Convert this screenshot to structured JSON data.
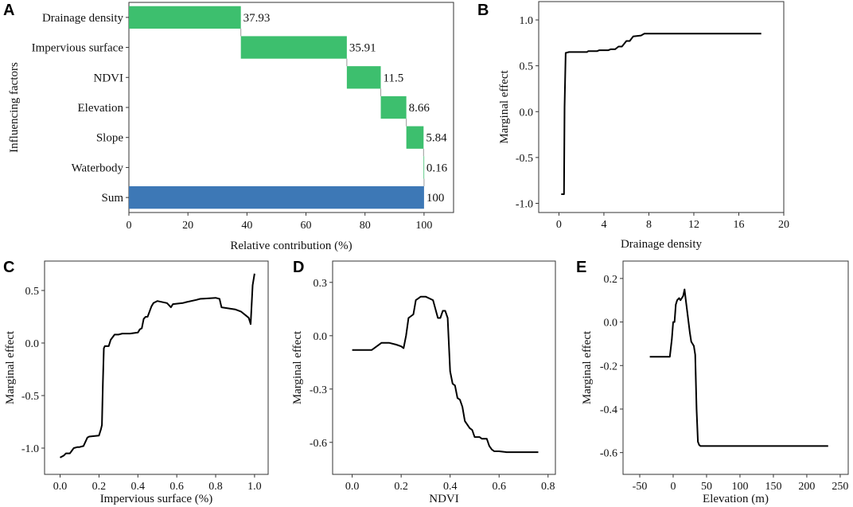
{
  "chart_data": [
    {
      "panel": "A",
      "type": "bar",
      "subtype": "waterfall-horizontal",
      "categories": [
        "Drainage density",
        "Impervious surface",
        "NDVI",
        "Elevation",
        "Slope",
        "Waterbody",
        "Sum"
      ],
      "values": [
        37.93,
        35.91,
        11.5,
        8.66,
        5.84,
        0.16,
        100
      ],
      "value_labels": [
        "37.93",
        "35.91",
        "11.5",
        "8.66",
        "5.84",
        "0.16",
        "100"
      ],
      "colors": {
        "increment": "#3dbf6e",
        "total": "#3d78b6",
        "connector": "#9a9a9a"
      },
      "xlabel": "Relative contribution (%)",
      "ylabel": "Influencing factors",
      "xlim": [
        0,
        110
      ],
      "xticks": [
        0,
        20,
        40,
        60,
        80,
        100
      ],
      "xtick_labels": [
        "0",
        "20",
        "40",
        "60",
        "80",
        "100"
      ]
    },
    {
      "panel": "B",
      "type": "line",
      "xlabel": "Drainage density",
      "ylabel": "Marginal effect",
      "xlim": [
        -1.8,
        20
      ],
      "ylim": [
        -1.1,
        1.2
      ],
      "xticks": [
        0,
        4,
        8,
        12,
        16,
        20
      ],
      "xtick_labels": [
        "0",
        "4",
        "8",
        "12",
        "16",
        "20"
      ],
      "yticks": [
        -1.0,
        -0.5,
        0.0,
        0.5,
        1.0
      ],
      "ytick_labels": [
        "-1.0",
        "-0.5",
        "0.0",
        "0.5",
        "1.0"
      ],
      "series": [
        {
          "name": "Drainage density",
          "x": [
            0.2,
            0.45,
            0.5,
            0.6,
            0.9,
            1.5,
            2.5,
            2.6,
            3.4,
            3.6,
            4.4,
            4.6,
            5.0,
            5.3,
            5.6,
            6.0,
            6.3,
            6.6,
            7.3,
            7.6,
            18.0
          ],
          "y": [
            -0.9,
            -0.9,
            0.05,
            0.64,
            0.65,
            0.65,
            0.65,
            0.66,
            0.66,
            0.67,
            0.67,
            0.68,
            0.68,
            0.71,
            0.71,
            0.77,
            0.77,
            0.82,
            0.83,
            0.85,
            0.85
          ]
        }
      ]
    },
    {
      "panel": "C",
      "type": "line",
      "xlabel": "Impervious surface (%)",
      "ylabel": "Marginal effect",
      "xlim": [
        -0.08,
        1.07
      ],
      "ylim": [
        -1.25,
        0.78
      ],
      "xticks": [
        0,
        0.2,
        0.4,
        0.6,
        0.8,
        1.0
      ],
      "xtick_labels": [
        "0.0",
        "0.2",
        "0.4",
        "0.6",
        "0.8",
        "1.0"
      ],
      "yticks": [
        -1.0,
        -0.5,
        0.0,
        0.5
      ],
      "ytick_labels": [
        "-1.0",
        "-0.5",
        "0.0",
        "0.5"
      ],
      "series": [
        {
          "name": "Impervious surface",
          "x": [
            0.0,
            0.02,
            0.03,
            0.05,
            0.07,
            0.09,
            0.1,
            0.12,
            0.14,
            0.15,
            0.2,
            0.21,
            0.215,
            0.22,
            0.225,
            0.23,
            0.25,
            0.26,
            0.28,
            0.3,
            0.32,
            0.36,
            0.4,
            0.41,
            0.42,
            0.43,
            0.44,
            0.45,
            0.47,
            0.48,
            0.5,
            0.55,
            0.57,
            0.58,
            0.63,
            0.65,
            0.7,
            0.72,
            0.8,
            0.82,
            0.83,
            0.9,
            0.93,
            0.95,
            0.97,
            0.98,
            0.99,
            1.0
          ],
          "y": [
            -1.09,
            -1.07,
            -1.05,
            -1.05,
            -1.0,
            -0.99,
            -0.99,
            -0.98,
            -0.9,
            -0.89,
            -0.88,
            -0.82,
            -0.78,
            -0.38,
            -0.05,
            -0.03,
            -0.03,
            0.03,
            0.08,
            0.08,
            0.09,
            0.09,
            0.1,
            0.13,
            0.14,
            0.23,
            0.25,
            0.25,
            0.35,
            0.38,
            0.4,
            0.38,
            0.34,
            0.37,
            0.38,
            0.39,
            0.41,
            0.42,
            0.43,
            0.42,
            0.34,
            0.32,
            0.3,
            0.27,
            0.24,
            0.18,
            0.55,
            0.66
          ]
        }
      ]
    },
    {
      "panel": "D",
      "type": "line",
      "xlabel": "NDVI",
      "ylabel": "Marginal effect",
      "xlim": [
        -0.08,
        0.83
      ],
      "ylim": [
        -0.78,
        0.42
      ],
      "xticks": [
        0,
        0.2,
        0.4,
        0.6,
        0.8
      ],
      "xtick_labels": [
        "0.0",
        "0.2",
        "0.4",
        "0.6",
        "0.8"
      ],
      "yticks": [
        -0.6,
        -0.3,
        0.0,
        0.3
      ],
      "ytick_labels": [
        "-0.6",
        "-0.3",
        "0.0",
        "0.3"
      ],
      "series": [
        {
          "name": "NDVI",
          "x": [
            0.0,
            0.08,
            0.1,
            0.12,
            0.15,
            0.18,
            0.2,
            0.21,
            0.22,
            0.23,
            0.25,
            0.26,
            0.27,
            0.28,
            0.3,
            0.33,
            0.35,
            0.36,
            0.37,
            0.38,
            0.39,
            0.4,
            0.41,
            0.42,
            0.43,
            0.44,
            0.45,
            0.46,
            0.48,
            0.49,
            0.5,
            0.52,
            0.53,
            0.55,
            0.56,
            0.57,
            0.58,
            0.6,
            0.63,
            0.66,
            0.76
          ],
          "y": [
            -0.08,
            -0.08,
            -0.06,
            -0.04,
            -0.04,
            -0.05,
            -0.06,
            -0.07,
            0.0,
            0.1,
            0.12,
            0.2,
            0.21,
            0.22,
            0.22,
            0.2,
            0.1,
            0.1,
            0.14,
            0.14,
            0.1,
            -0.2,
            -0.27,
            -0.28,
            -0.35,
            -0.36,
            -0.4,
            -0.48,
            -0.52,
            -0.53,
            -0.57,
            -0.57,
            -0.58,
            -0.58,
            -0.62,
            -0.64,
            -0.65,
            -0.65,
            -0.655,
            -0.655,
            -0.655
          ]
        }
      ]
    },
    {
      "panel": "E",
      "type": "line",
      "xlabel": "Elevation (m)",
      "ylabel": "Marginal effect",
      "xlim": [
        -75,
        262
      ],
      "ylim": [
        -0.7,
        0.28
      ],
      "xticks": [
        -50,
        0,
        50,
        100,
        150,
        200,
        250
      ],
      "xtick_labels": [
        "-50",
        "0",
        "50",
        "100",
        "150",
        "200",
        "250"
      ],
      "yticks": [
        -0.6,
        -0.4,
        -0.2,
        0.0,
        0.2
      ],
      "ytick_labels": [
        "-0.6",
        "-0.4",
        "-0.2",
        "0.0",
        "0.2"
      ],
      "series": [
        {
          "name": "Elevation",
          "x": [
            -35,
            -5,
            -2,
            0,
            2,
            4,
            6,
            9,
            11,
            13,
            15,
            17,
            19,
            21,
            23,
            25,
            27,
            29,
            31,
            33,
            35,
            37,
            39,
            41,
            45,
            60,
            232
          ],
          "y": [
            -0.16,
            -0.16,
            -0.08,
            0.0,
            0.0,
            0.08,
            0.1,
            0.11,
            0.1,
            0.11,
            0.12,
            0.15,
            0.1,
            0.05,
            0.0,
            -0.05,
            -0.09,
            -0.1,
            -0.11,
            -0.15,
            -0.4,
            -0.55,
            -0.565,
            -0.57,
            -0.57,
            -0.57,
            -0.57
          ]
        }
      ]
    }
  ]
}
